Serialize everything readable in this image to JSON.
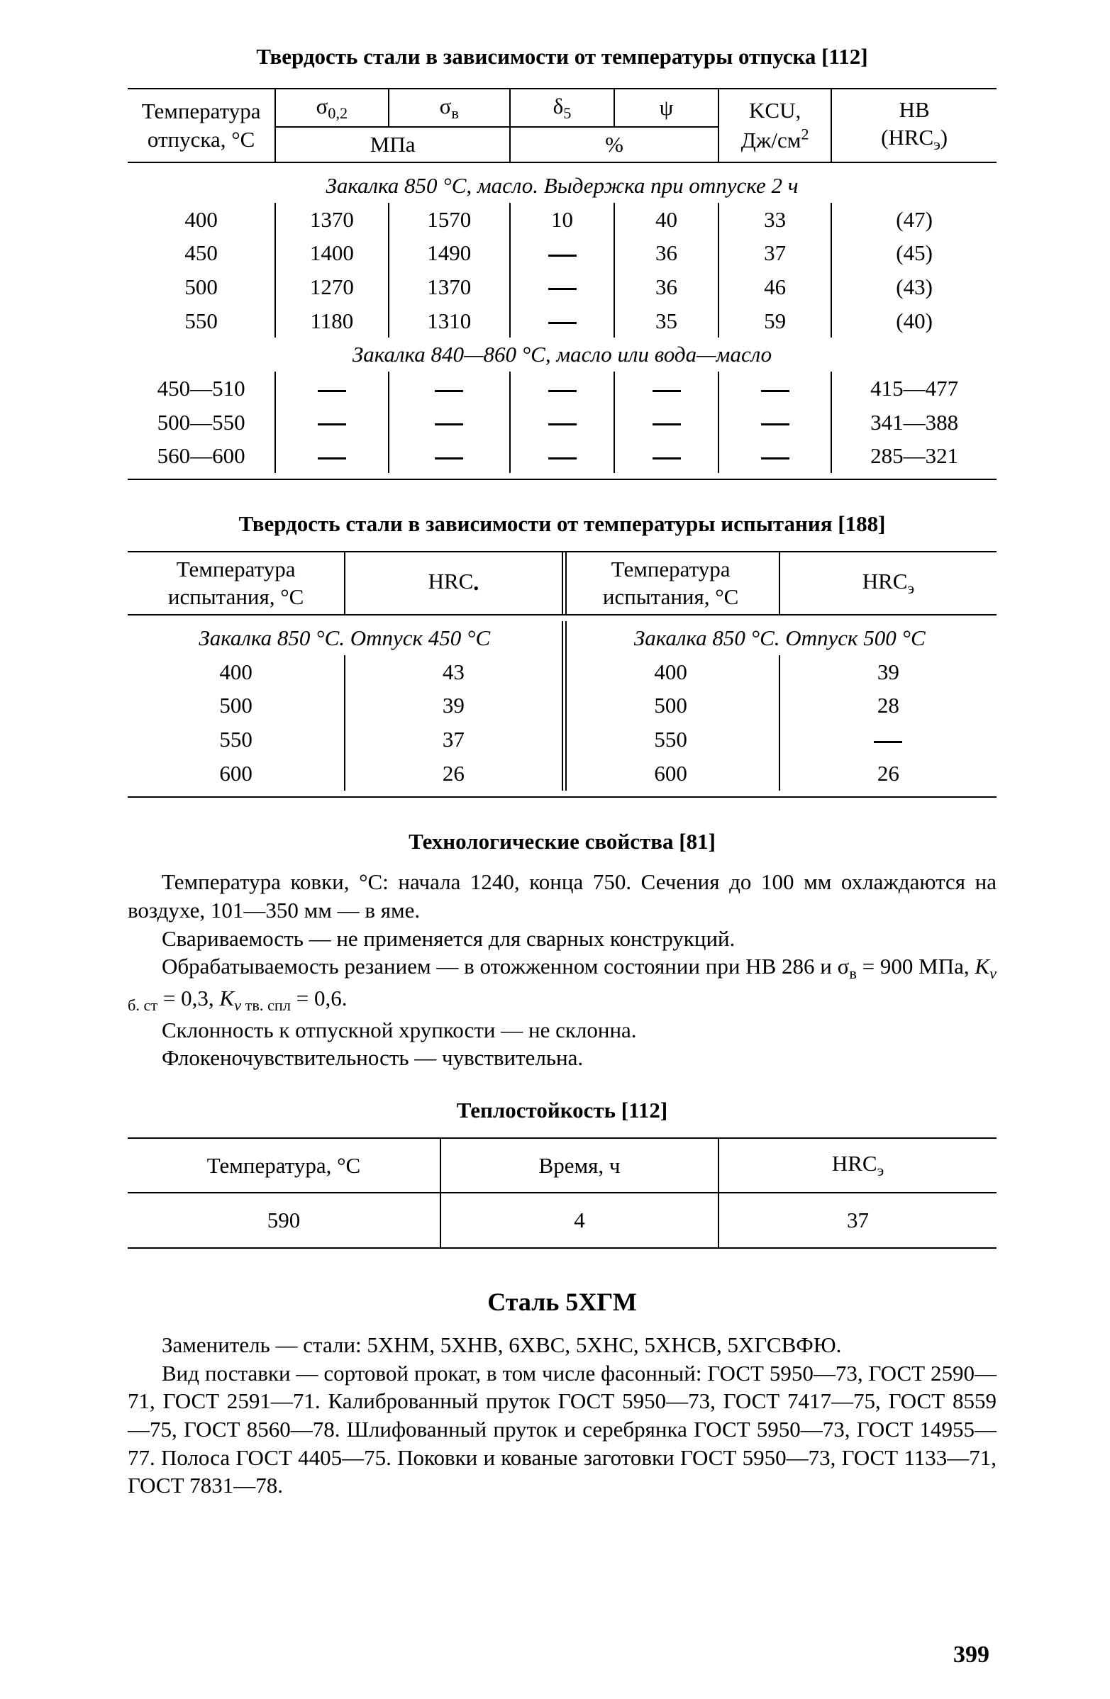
{
  "table1": {
    "title": "Твердость стали в зависимости от температуры отпуска [112]",
    "header": {
      "col1_top": "Температура",
      "col1_bottom": "отпуска, °С",
      "sigma02_html": "σ<span class='sub'>0,2</span>",
      "sigmaB_html": "σ<span class='sub'>в</span>",
      "delta_html": "δ<span class='sub'>5</span>",
      "psi": "ψ",
      "mpa": "МПа",
      "pct": "%",
      "kcu_top": "KCU,",
      "kcu_bottom_html": "Дж/см<span class='sup'>2</span>",
      "hb_top": "HB",
      "hb_bottom_html": "(HRC<span class='sub'>э</span>)"
    },
    "group1_caption": "Закалка 850 °С, масло. Выдержка при отпуске 2 ч",
    "group1_rows": [
      {
        "t": "400",
        "s02": "1370",
        "sb": "1570",
        "d": "10",
        "psi": "40",
        "kcu": "33",
        "hb": "(47)"
      },
      {
        "t": "450",
        "s02": "1400",
        "sb": "1490",
        "d": "—",
        "psi": "36",
        "kcu": "37",
        "hb": "(45)"
      },
      {
        "t": "500",
        "s02": "1270",
        "sb": "1370",
        "d": "—",
        "psi": "36",
        "kcu": "46",
        "hb": "(43)"
      },
      {
        "t": "550",
        "s02": "1180",
        "sb": "1310",
        "d": "—",
        "psi": "35",
        "kcu": "59",
        "hb": "(40)"
      }
    ],
    "group2_caption": "Закалка 840—860 °С, масло или вода—масло",
    "group2_rows": [
      {
        "t": "450—510",
        "s02": "—",
        "sb": "—",
        "d": "—",
        "psi": "—",
        "kcu": "—",
        "hb": "415—477"
      },
      {
        "t": "500—550",
        "s02": "—",
        "sb": "—",
        "d": "—",
        "psi": "—",
        "kcu": "—",
        "hb": "341—388"
      },
      {
        "t": "560—600",
        "s02": "—",
        "sb": "—",
        "d": "—",
        "psi": "—",
        "kcu": "—",
        "hb": "285—321"
      }
    ]
  },
  "table2": {
    "title": "Твердость стали в зависимости от температуры испытания [188]",
    "header": {
      "left_col1_top": "Температура",
      "left_col1_bottom": "испытания, °С",
      "hrc_e_html": "HRC<span class='sub'>•</span>",
      "right_col1_top": "Температура",
      "right_col1_bottom": "испытания, °С",
      "hrc_eh_html": "HRC<span class='sub'>э</span>"
    },
    "left_caption": "Закалка 850 °С. Отпуск 450 °С",
    "left_rows": [
      {
        "t": "400",
        "v": "43"
      },
      {
        "t": "500",
        "v": "39"
      },
      {
        "t": "550",
        "v": "37"
      },
      {
        "t": "600",
        "v": "26"
      }
    ],
    "right_caption": "Закалка 850 °С. Отпуск 500 °С",
    "right_rows": [
      {
        "t": "400",
        "v": "39"
      },
      {
        "t": "500",
        "v": "28"
      },
      {
        "t": "550",
        "v": "—"
      },
      {
        "t": "600",
        "v": "26"
      }
    ]
  },
  "tech": {
    "title": "Технологические свойства [81]",
    "p1_html": "Температура ковки, °С: начала 1240, конца 750. Сечения до 100 мм охла­ждаются на воздухе, 101—350 мм — в яме.",
    "p2": "Свариваемость — не применяется для сварных конструкций.",
    "p3_html": "Обрабатываемость резанием — в отожженном состоянии при HB 286 и σ<span class='sub'>в</span> = 900 МПа, <i>K</i><span class='sub'><i>v</i> б. ст</span> = 0,3, <i>K</i><span class='sub'><i>v</i> тв. спл</span> = 0,6.",
    "p4": "Склонность к отпускной хрупкости — не склонна.",
    "p5": "Флокеночувствительность — чувствительна."
  },
  "table3": {
    "title": "Теплостойкость [112]",
    "headers": {
      "c1": "Температура, °С",
      "c2": "Время, ч",
      "c3_html": "HRC<span class='sub'>э</span>"
    },
    "row": {
      "c1": "590",
      "c2": "4",
      "c3": "37"
    }
  },
  "steel": {
    "title": "Сталь 5ХГМ",
    "p1": "Заменитель — стали: 5ХНМ, 5ХНВ, 6ХВС, 5ХНС, 5ХНСВ, 5ХГСВФЮ.",
    "p2": "Вид поставки — сортовой прокат, в том числе фасонный: ГОСТ 5950—73, ГОСТ 2590—71, ГОСТ 2591—71. Калиброванный пруток ГОСТ 5950—73, ГОСТ 7417—75, ГОСТ 8559—75, ГОСТ 8560—78. Шлифованный пруток и серебрянка ГОСТ 5950—73, ГОСТ 14955—77. Полоса ГОСТ 4405—75. Поковки и кованые заготовки ГОСТ 5950—73, ГОСТ 1133—71, ГОСТ 7831—78."
  },
  "page_number": "399"
}
